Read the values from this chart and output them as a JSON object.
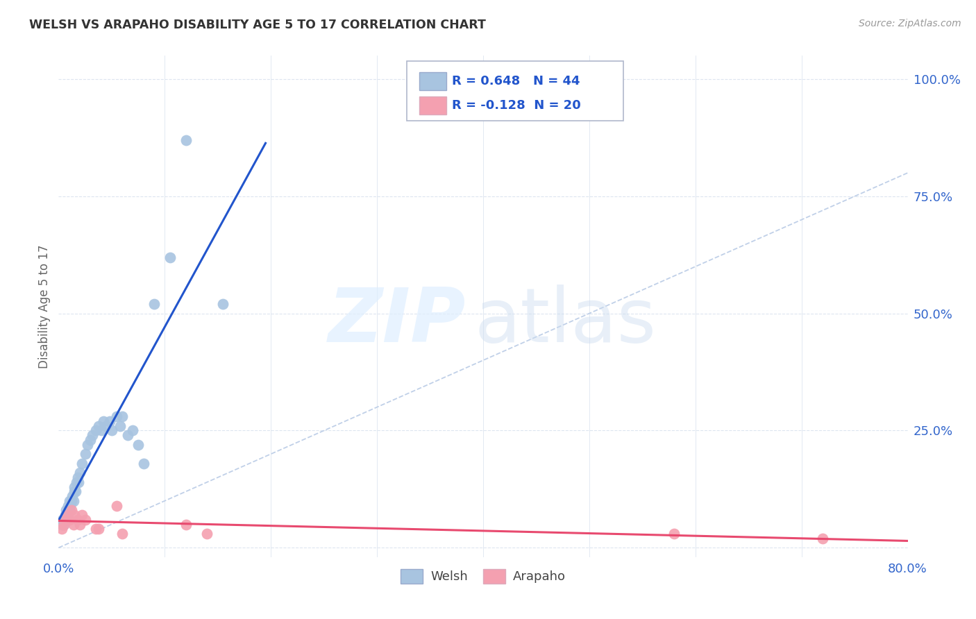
{
  "title": "WELSH VS ARAPAHO DISABILITY AGE 5 TO 17 CORRELATION CHART",
  "source": "Source: ZipAtlas.com",
  "ylabel": "Disability Age 5 to 17",
  "xlim": [
    0.0,
    0.8
  ],
  "ylim": [
    -0.02,
    1.05
  ],
  "xtick_vals": [
    0.0,
    0.1,
    0.2,
    0.3,
    0.4,
    0.5,
    0.6,
    0.7,
    0.8
  ],
  "xtick_labels": [
    "0.0%",
    "",
    "",
    "",
    "",
    "",
    "",
    "",
    "80.0%"
  ],
  "ytick_vals": [
    0.0,
    0.25,
    0.5,
    0.75,
    1.0
  ],
  "ytick_labels": [
    "",
    "25.0%",
    "50.0%",
    "75.0%",
    "100.0%"
  ],
  "legend_welsh_label": "Welsh",
  "legend_arapaho_label": "Arapaho",
  "welsh_R": 0.648,
  "welsh_N": 44,
  "arapaho_R": -0.128,
  "arapaho_N": 20,
  "welsh_color": "#a8c4e0",
  "welsh_line_color": "#2255cc",
  "arapaho_color": "#f4a0b0",
  "arapaho_line_color": "#e84a6f",
  "diagonal_color": "#c0d0e8",
  "background_color": "#ffffff",
  "grid_color": "#dde5f0",
  "welsh_x": [
    0.003,
    0.004,
    0.005,
    0.006,
    0.007,
    0.007,
    0.008,
    0.009,
    0.01,
    0.01,
    0.011,
    0.012,
    0.013,
    0.014,
    0.015,
    0.015,
    0.016,
    0.017,
    0.018,
    0.019,
    0.02,
    0.022,
    0.025,
    0.027,
    0.03,
    0.032,
    0.035,
    0.038,
    0.04,
    0.042,
    0.045,
    0.048,
    0.05,
    0.055,
    0.058,
    0.06,
    0.065,
    0.07,
    0.075,
    0.08,
    0.09,
    0.105,
    0.12,
    0.155
  ],
  "welsh_y": [
    0.05,
    0.06,
    0.05,
    0.07,
    0.06,
    0.08,
    0.07,
    0.09,
    0.08,
    0.1,
    0.09,
    0.1,
    0.11,
    0.1,
    0.12,
    0.13,
    0.12,
    0.14,
    0.15,
    0.14,
    0.16,
    0.18,
    0.2,
    0.22,
    0.23,
    0.24,
    0.25,
    0.26,
    0.25,
    0.27,
    0.26,
    0.27,
    0.25,
    0.28,
    0.26,
    0.28,
    0.24,
    0.25,
    0.22,
    0.18,
    0.52,
    0.62,
    0.87,
    0.52
  ],
  "arapaho_x": [
    0.003,
    0.005,
    0.007,
    0.008,
    0.01,
    0.012,
    0.014,
    0.015,
    0.018,
    0.02,
    0.022,
    0.025,
    0.035,
    0.038,
    0.055,
    0.06,
    0.12,
    0.14,
    0.58,
    0.72
  ],
  "arapaho_y": [
    0.04,
    0.05,
    0.06,
    0.07,
    0.06,
    0.08,
    0.05,
    0.07,
    0.06,
    0.05,
    0.07,
    0.06,
    0.04,
    0.04,
    0.09,
    0.03,
    0.05,
    0.03,
    0.03,
    0.02
  ]
}
